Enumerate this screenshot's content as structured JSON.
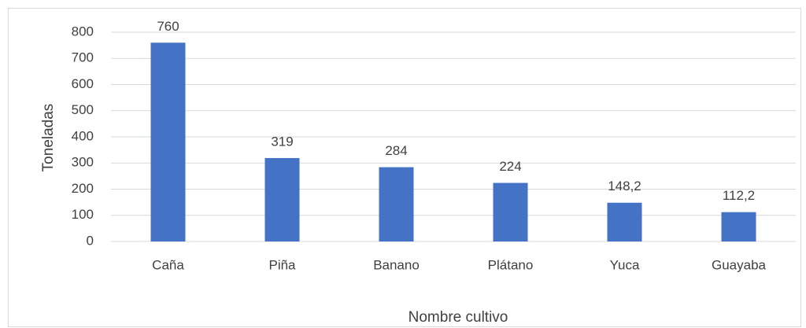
{
  "chart_data": {
    "type": "bar",
    "x_label": "Nombre cultivo",
    "y_label": "Toneladas",
    "categories": [
      "Caña",
      "Piña",
      "Banano",
      "Plátano",
      "Yuca",
      "Guayaba"
    ],
    "values": [
      760,
      319,
      284,
      224,
      148.2,
      112.2
    ],
    "value_labels": [
      "760",
      "319",
      "284",
      "224",
      "148,2",
      "112,2"
    ],
    "color": "#4472c4",
    "ylim": [
      0,
      800
    ],
    "yticks": [
      0,
      100,
      200,
      300,
      400,
      500,
      600,
      700,
      800
    ],
    "grid": true
  }
}
